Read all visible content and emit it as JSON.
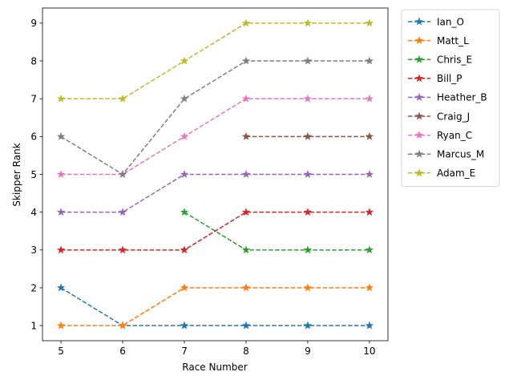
{
  "chart_data": {
    "type": "line",
    "title": "",
    "xlabel": "Race Number",
    "ylabel": "Skipper Rank",
    "x_ticks": [
      5,
      6,
      7,
      8,
      9,
      10
    ],
    "y_ticks": [
      1,
      2,
      3,
      4,
      5,
      6,
      7,
      8,
      9
    ],
    "xlim": [
      4.7,
      10.3
    ],
    "ylim": [
      0.6,
      9.4
    ],
    "line_style": "dashed",
    "marker": "star",
    "grid": false,
    "legend_position": "outside-right-top",
    "series": [
      {
        "name": "Ian_O",
        "color": "#1f77b4",
        "x": [
          5,
          6,
          7,
          8,
          9,
          10
        ],
        "values": [
          2,
          1,
          1,
          1,
          1,
          1
        ]
      },
      {
        "name": "Matt_L",
        "color": "#ff7f0e",
        "x": [
          5,
          6,
          7,
          8,
          9,
          10
        ],
        "values": [
          1,
          1,
          2,
          2,
          2,
          2
        ]
      },
      {
        "name": "Chris_E",
        "color": "#2ca02c",
        "x": [
          7,
          8,
          9,
          10
        ],
        "values": [
          4,
          3,
          3,
          3
        ]
      },
      {
        "name": "Bill_P",
        "color": "#d62728",
        "x": [
          5,
          6,
          7,
          8,
          9,
          10
        ],
        "values": [
          3,
          3,
          3,
          4,
          4,
          4
        ]
      },
      {
        "name": "Heather_B",
        "color": "#9467bd",
        "x": [
          5,
          6,
          7,
          8,
          9,
          10
        ],
        "values": [
          4,
          4,
          5,
          5,
          5,
          5
        ]
      },
      {
        "name": "Craig_J",
        "color": "#8c564b",
        "x": [
          8,
          9,
          10
        ],
        "values": [
          6,
          6,
          6
        ]
      },
      {
        "name": "Ryan_C",
        "color": "#e377c2",
        "x": [
          5,
          6,
          7,
          8,
          9,
          10
        ],
        "values": [
          5,
          5,
          6,
          7,
          7,
          7
        ]
      },
      {
        "name": "Marcus_M",
        "color": "#7f7f7f",
        "x": [
          5,
          6,
          7,
          8,
          9,
          10
        ],
        "values": [
          6,
          5,
          7,
          8,
          8,
          8
        ]
      },
      {
        "name": "Adam_E",
        "color": "#bcbd22",
        "x": [
          5,
          6,
          7,
          8,
          9,
          10
        ],
        "values": [
          7,
          7,
          8,
          9,
          9,
          9
        ]
      }
    ]
  }
}
